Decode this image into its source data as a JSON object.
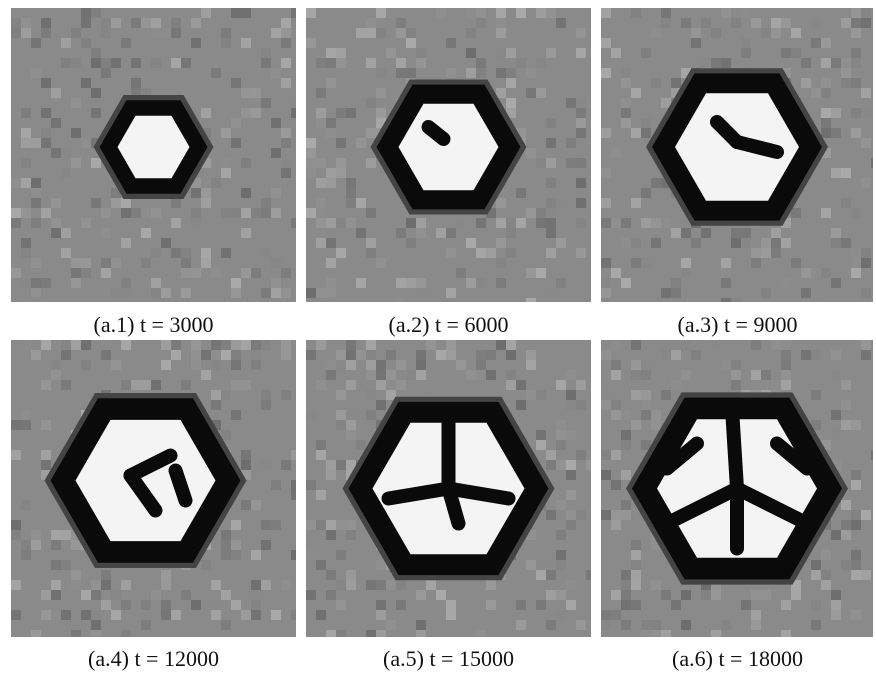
{
  "panels": [
    {
      "caption": "(a.1) t = 3000"
    },
    {
      "caption": "(a.2) t = 6000"
    },
    {
      "caption": "(a.3) t = 9000"
    },
    {
      "caption": "(a.4) t = 12000"
    },
    {
      "caption": "(a.5) t = 15000"
    },
    {
      "caption": "(a.6) t = 18000"
    }
  ]
}
